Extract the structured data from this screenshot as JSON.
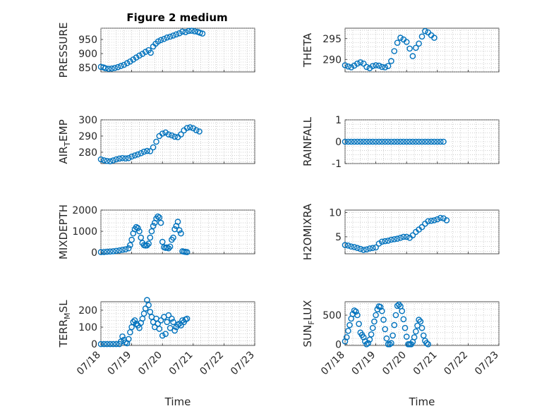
{
  "figure": {
    "title": "Figure 2 medium"
  },
  "chart_data": [
    {
      "type": "scatter",
      "ylabel": "PRESSURE",
      "xlabel": "",
      "ylim": [
        835,
        990
      ],
      "yticks": [
        850,
        900,
        950
      ],
      "xlim": [
        "07/18",
        "07/23"
      ],
      "xticks": [
        "07/18",
        "07/19",
        "07/20",
        "07/21",
        "07/22",
        "07/23"
      ],
      "grid": true,
      "marker": "circle",
      "points": [
        [
          0.0,
          853
        ],
        [
          0.08,
          851
        ],
        [
          0.15,
          848
        ],
        [
          0.25,
          846
        ],
        [
          0.35,
          847
        ],
        [
          0.45,
          849
        ],
        [
          0.55,
          852
        ],
        [
          0.65,
          856
        ],
        [
          0.75,
          860
        ],
        [
          0.85,
          866
        ],
        [
          0.95,
          872
        ],
        [
          1.05,
          879
        ],
        [
          1.15,
          886
        ],
        [
          1.25,
          893
        ],
        [
          1.35,
          899
        ],
        [
          1.45,
          906
        ],
        [
          1.55,
          912
        ],
        [
          1.62,
          903
        ],
        [
          1.7,
          925
        ],
        [
          1.78,
          935
        ],
        [
          1.86,
          943
        ],
        [
          1.95,
          948
        ],
        [
          2.05,
          952
        ],
        [
          2.15,
          957
        ],
        [
          2.25,
          960
        ],
        [
          2.35,
          964
        ],
        [
          2.45,
          968
        ],
        [
          2.55,
          972
        ],
        [
          2.65,
          978
        ],
        [
          2.75,
          976
        ],
        [
          2.85,
          980
        ],
        [
          2.95,
          981
        ],
        [
          3.05,
          979
        ],
        [
          3.15,
          977
        ],
        [
          3.22,
          974
        ],
        [
          3.3,
          971
        ]
      ]
    },
    {
      "type": "scatter",
      "ylabel": "THETA",
      "xlabel": "",
      "ylim": [
        287,
        297.5
      ],
      "yticks": [
        290,
        295
      ],
      "xlim": [
        "07/18",
        "07/23"
      ],
      "xticks": [
        "07/18",
        "07/19",
        "07/20",
        "07/21",
        "07/22",
        "07/23"
      ],
      "grid": true,
      "marker": "circle",
      "points": [
        [
          0.0,
          288.6
        ],
        [
          0.1,
          288.3
        ],
        [
          0.2,
          288.1
        ],
        [
          0.3,
          288.5
        ],
        [
          0.4,
          289.0
        ],
        [
          0.5,
          289.3
        ],
        [
          0.6,
          289.0
        ],
        [
          0.7,
          288.2
        ],
        [
          0.8,
          287.9
        ],
        [
          0.9,
          288.4
        ],
        [
          1.0,
          288.6
        ],
        [
          1.1,
          288.5
        ],
        [
          1.2,
          288.2
        ],
        [
          1.3,
          288.1
        ],
        [
          1.4,
          288.4
        ],
        [
          1.5,
          289.6
        ],
        [
          1.6,
          292.0
        ],
        [
          1.7,
          294.0
        ],
        [
          1.8,
          295.2
        ],
        [
          1.9,
          294.8
        ],
        [
          2.0,
          294.2
        ],
        [
          2.1,
          292.6
        ],
        [
          2.2,
          290.8
        ],
        [
          2.3,
          292.8
        ],
        [
          2.4,
          293.8
        ],
        [
          2.5,
          295.5
        ],
        [
          2.6,
          296.8
        ],
        [
          2.7,
          296.5
        ],
        [
          2.8,
          295.8
        ],
        [
          2.9,
          295.2
        ]
      ]
    },
    {
      "type": "scatter",
      "ylabel": "AIR_TEMP",
      "xlabel": "",
      "ylim": [
        273,
        300
      ],
      "yticks": [
        280,
        290,
        300
      ],
      "xlim": [
        "07/18",
        "07/23"
      ],
      "xticks": [
        "07/18",
        "07/19",
        "07/20",
        "07/21",
        "07/22",
        "07/23"
      ],
      "grid": true,
      "marker": "circle",
      "points": [
        [
          0.0,
          275.6
        ],
        [
          0.1,
          275.0
        ],
        [
          0.2,
          274.6
        ],
        [
          0.3,
          274.4
        ],
        [
          0.4,
          274.9
        ],
        [
          0.5,
          275.6
        ],
        [
          0.6,
          276.1
        ],
        [
          0.7,
          276.4
        ],
        [
          0.8,
          276.2
        ],
        [
          0.9,
          276.4
        ],
        [
          1.0,
          277.3
        ],
        [
          1.1,
          278.0
        ],
        [
          1.2,
          278.6
        ],
        [
          1.3,
          279.4
        ],
        [
          1.4,
          280.3
        ],
        [
          1.5,
          280.8
        ],
        [
          1.6,
          280.6
        ],
        [
          1.7,
          283.0
        ],
        [
          1.8,
          286.5
        ],
        [
          1.9,
          290.0
        ],
        [
          2.0,
          291.5
        ],
        [
          2.1,
          292.2
        ],
        [
          2.2,
          291.0
        ],
        [
          2.3,
          290.4
        ],
        [
          2.4,
          289.6
        ],
        [
          2.5,
          289.3
        ],
        [
          2.6,
          291.0
        ],
        [
          2.7,
          293.5
        ],
        [
          2.8,
          295.0
        ],
        [
          2.9,
          295.4
        ],
        [
          3.0,
          294.8
        ],
        [
          3.1,
          293.6
        ],
        [
          3.2,
          292.8
        ]
      ]
    },
    {
      "type": "scatter",
      "ylabel": "RAINFALL",
      "xlabel": "",
      "ylim": [
        -1,
        1
      ],
      "yticks": [
        -1,
        0,
        1
      ],
      "xlim": [
        "07/18",
        "07/23"
      ],
      "xticks": [
        "07/18",
        "07/19",
        "07/20",
        "07/21",
        "07/22",
        "07/23"
      ],
      "grid": true,
      "marker": "circle",
      "points": [
        [
          0.0,
          0
        ],
        [
          0.1,
          0
        ],
        [
          0.2,
          0
        ],
        [
          0.3,
          0
        ],
        [
          0.4,
          0
        ],
        [
          0.5,
          0
        ],
        [
          0.6,
          0
        ],
        [
          0.7,
          0
        ],
        [
          0.8,
          0
        ],
        [
          0.9,
          0
        ],
        [
          1.0,
          0
        ],
        [
          1.1,
          0
        ],
        [
          1.2,
          0
        ],
        [
          1.3,
          0
        ],
        [
          1.4,
          0
        ],
        [
          1.5,
          0
        ],
        [
          1.6,
          0
        ],
        [
          1.7,
          0
        ],
        [
          1.8,
          0
        ],
        [
          1.9,
          0
        ],
        [
          2.0,
          0
        ],
        [
          2.1,
          0
        ],
        [
          2.2,
          0
        ],
        [
          2.3,
          0
        ],
        [
          2.4,
          0
        ],
        [
          2.5,
          0
        ],
        [
          2.6,
          0
        ],
        [
          2.7,
          0
        ],
        [
          2.8,
          0
        ],
        [
          2.9,
          0
        ],
        [
          3.0,
          0
        ],
        [
          3.1,
          0
        ],
        [
          3.2,
          0
        ]
      ]
    },
    {
      "type": "scatter",
      "ylabel": "MIXDEPTH",
      "xlabel": "",
      "ylim": [
        -60,
        2000
      ],
      "yticks": [
        0,
        1000,
        2000
      ],
      "xlim": [
        "07/18",
        "07/23"
      ],
      "xticks": [
        "07/18",
        "07/19",
        "07/20",
        "07/21",
        "07/22",
        "07/23"
      ],
      "grid": true,
      "marker": "circle",
      "points": [
        [
          0.0,
          20
        ],
        [
          0.1,
          25
        ],
        [
          0.2,
          35
        ],
        [
          0.3,
          45
        ],
        [
          0.4,
          60
        ],
        [
          0.5,
          80
        ],
        [
          0.6,
          100
        ],
        [
          0.7,
          130
        ],
        [
          0.8,
          150
        ],
        [
          0.9,
          200
        ],
        [
          0.95,
          350
        ],
        [
          1.0,
          600
        ],
        [
          1.05,
          900
        ],
        [
          1.1,
          1100
        ],
        [
          1.15,
          1200
        ],
        [
          1.2,
          1150
        ],
        [
          1.25,
          1000
        ],
        [
          1.3,
          700
        ],
        [
          1.35,
          450
        ],
        [
          1.4,
          350
        ],
        [
          1.45,
          330
        ],
        [
          1.5,
          340
        ],
        [
          1.55,
          420
        ],
        [
          1.6,
          700
        ],
        [
          1.65,
          1000
        ],
        [
          1.7,
          1250
        ],
        [
          1.75,
          1400
        ],
        [
          1.8,
          1600
        ],
        [
          1.85,
          1700
        ],
        [
          1.9,
          1650
        ],
        [
          1.95,
          1400
        ],
        [
          2.0,
          500
        ],
        [
          2.05,
          250
        ],
        [
          2.1,
          220
        ],
        [
          2.15,
          240
        ],
        [
          2.2,
          200
        ],
        [
          2.25,
          280
        ],
        [
          2.3,
          600
        ],
        [
          2.35,
          700
        ],
        [
          2.4,
          1100
        ],
        [
          2.45,
          1250
        ],
        [
          2.5,
          1450
        ],
        [
          2.55,
          1050
        ],
        [
          2.6,
          900
        ],
        [
          2.65,
          60
        ],
        [
          2.7,
          40
        ],
        [
          2.75,
          30
        ],
        [
          2.8,
          20
        ]
      ]
    },
    {
      "type": "scatter",
      "ylabel": "H2OMIXRA",
      "xlabel": "",
      "ylim": [
        1.5,
        10.5
      ],
      "yticks": [
        5,
        10
      ],
      "xlim": [
        "07/18",
        "07/23"
      ],
      "xticks": [
        "07/18",
        "07/19",
        "07/20",
        "07/21",
        "07/22",
        "07/23"
      ],
      "grid": true,
      "marker": "circle",
      "points": [
        [
          0.0,
          3.3
        ],
        [
          0.1,
          3.2
        ],
        [
          0.2,
          3.0
        ],
        [
          0.3,
          2.9
        ],
        [
          0.4,
          2.7
        ],
        [
          0.5,
          2.5
        ],
        [
          0.6,
          2.3
        ],
        [
          0.7,
          2.4
        ],
        [
          0.8,
          2.6
        ],
        [
          0.9,
          2.7
        ],
        [
          1.0,
          2.8
        ],
        [
          1.1,
          3.6
        ],
        [
          1.2,
          4.0
        ],
        [
          1.3,
          4.1
        ],
        [
          1.4,
          4.2
        ],
        [
          1.5,
          4.4
        ],
        [
          1.6,
          4.5
        ],
        [
          1.7,
          4.6
        ],
        [
          1.8,
          4.8
        ],
        [
          1.9,
          5.0
        ],
        [
          2.0,
          5.0
        ],
        [
          2.1,
          4.8
        ],
        [
          2.2,
          5.3
        ],
        [
          2.3,
          6.0
        ],
        [
          2.4,
          6.5
        ],
        [
          2.5,
          7.0
        ],
        [
          2.6,
          7.7
        ],
        [
          2.7,
          8.2
        ],
        [
          2.8,
          8.3
        ],
        [
          2.9,
          8.4
        ],
        [
          3.0,
          8.6
        ],
        [
          3.1,
          8.9
        ],
        [
          3.2,
          8.8
        ],
        [
          3.3,
          8.4
        ]
      ]
    },
    {
      "type": "scatter",
      "ylabel": "TERR_MSL",
      "xlabel": "Time",
      "ylim": [
        -8,
        250
      ],
      "yticks": [
        0,
        100,
        200
      ],
      "xlim": [
        "07/18",
        "07/23"
      ],
      "xticks": [
        "07/18",
        "07/19",
        "07/20",
        "07/21",
        "07/22",
        "07/23"
      ],
      "grid": true,
      "marker": "circle",
      "points": [
        [
          0.0,
          0
        ],
        [
          0.1,
          0
        ],
        [
          0.2,
          0
        ],
        [
          0.3,
          0
        ],
        [
          0.4,
          0
        ],
        [
          0.5,
          0
        ],
        [
          0.6,
          0
        ],
        [
          0.65,
          15
        ],
        [
          0.7,
          45
        ],
        [
          0.75,
          25
        ],
        [
          0.8,
          10
        ],
        [
          0.85,
          5
        ],
        [
          0.9,
          30
        ],
        [
          0.95,
          70
        ],
        [
          1.0,
          100
        ],
        [
          1.05,
          130
        ],
        [
          1.1,
          140
        ],
        [
          1.15,
          120
        ],
        [
          1.2,
          110
        ],
        [
          1.25,
          95
        ],
        [
          1.3,
          125
        ],
        [
          1.35,
          150
        ],
        [
          1.4,
          180
        ],
        [
          1.45,
          210
        ],
        [
          1.5,
          260
        ],
        [
          1.55,
          230
        ],
        [
          1.6,
          190
        ],
        [
          1.65,
          160
        ],
        [
          1.7,
          130
        ],
        [
          1.75,
          100
        ],
        [
          1.8,
          150
        ],
        [
          1.85,
          120
        ],
        [
          1.9,
          90
        ],
        [
          1.95,
          140
        ],
        [
          2.0,
          50
        ],
        [
          2.05,
          160
        ],
        [
          2.1,
          60
        ],
        [
          2.15,
          130
        ],
        [
          2.2,
          170
        ],
        [
          2.25,
          95
        ],
        [
          2.3,
          150
        ],
        [
          2.35,
          130
        ],
        [
          2.4,
          80
        ],
        [
          2.45,
          100
        ],
        [
          2.5,
          115
        ],
        [
          2.55,
          120
        ],
        [
          2.6,
          110
        ],
        [
          2.65,
          140
        ],
        [
          2.7,
          130
        ],
        [
          2.75,
          145
        ],
        [
          2.8,
          150
        ]
      ]
    },
    {
      "type": "scatter",
      "ylabel": "SUN_FLUX",
      "xlabel": "Time",
      "ylim": [
        -20,
        730
      ],
      "yticks": [
        0,
        500
      ],
      "xlim": [
        "07/18",
        "07/23"
      ],
      "xticks": [
        "07/18",
        "07/19",
        "07/20",
        "07/21",
        "07/22",
        "07/23"
      ],
      "grid": true,
      "marker": "circle",
      "points": [
        [
          0.0,
          50
        ],
        [
          0.05,
          120
        ],
        [
          0.1,
          230
        ],
        [
          0.15,
          330
        ],
        [
          0.2,
          440
        ],
        [
          0.25,
          520
        ],
        [
          0.3,
          580
        ],
        [
          0.35,
          560
        ],
        [
          0.4,
          500
        ],
        [
          0.45,
          350
        ],
        [
          0.5,
          200
        ],
        [
          0.55,
          160
        ],
        [
          0.6,
          120
        ],
        [
          0.65,
          50
        ],
        [
          0.7,
          0
        ],
        [
          0.75,
          20
        ],
        [
          0.8,
          80
        ],
        [
          0.85,
          170
        ],
        [
          0.9,
          280
        ],
        [
          0.95,
          390
        ],
        [
          1.0,
          500
        ],
        [
          1.05,
          600
        ],
        [
          1.1,
          650
        ],
        [
          1.15,
          640
        ],
        [
          1.2,
          570
        ],
        [
          1.25,
          420
        ],
        [
          1.3,
          260
        ],
        [
          1.35,
          100
        ],
        [
          1.4,
          0
        ],
        [
          1.45,
          0
        ],
        [
          1.5,
          20
        ],
        [
          1.55,
          150
        ],
        [
          1.6,
          330
        ],
        [
          1.65,
          500
        ],
        [
          1.7,
          660
        ],
        [
          1.75,
          680
        ],
        [
          1.8,
          650
        ],
        [
          1.85,
          570
        ],
        [
          1.9,
          430
        ],
        [
          1.95,
          280
        ],
        [
          2.0,
          130
        ],
        [
          2.05,
          0
        ],
        [
          2.1,
          0
        ],
        [
          2.15,
          0
        ],
        [
          2.2,
          40
        ],
        [
          2.25,
          120
        ],
        [
          2.3,
          220
        ],
        [
          2.35,
          320
        ],
        [
          2.4,
          420
        ],
        [
          2.45,
          390
        ],
        [
          2.5,
          280
        ],
        [
          2.55,
          150
        ],
        [
          2.6,
          60
        ],
        [
          2.65,
          20
        ],
        [
          2.7,
          0
        ]
      ]
    }
  ]
}
